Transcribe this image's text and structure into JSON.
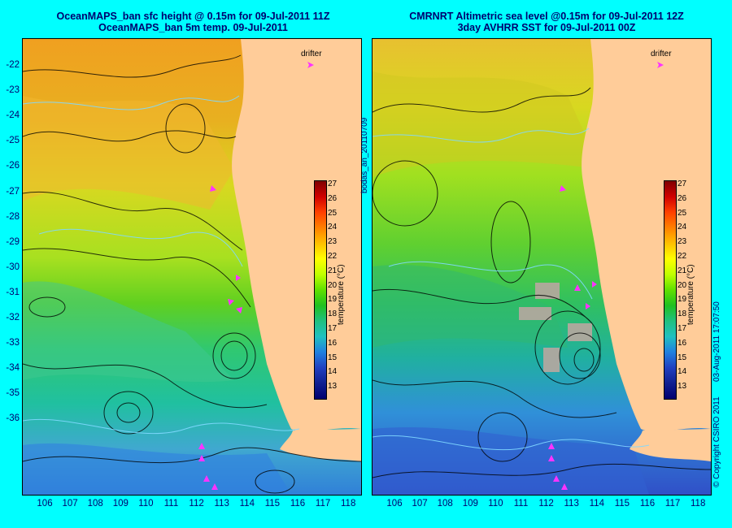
{
  "titles": {
    "left_line1": "OceanMAPS_ban sfc height  @ 0.15m for 09-Jul-2011 11Z",
    "left_line2": "OceanMAPS_ban 5m temp. 09-Jul-2011",
    "right_line1": "CMRNRT Altimetric sea level  @0.15m  for 09-Jul-2011 12Z",
    "right_line2": "3day AVHRR SST for 09-Jul-2011 00Z"
  },
  "axes": {
    "lat_ticks": [
      "-22",
      "-23",
      "-24",
      "-25",
      "-26",
      "-27",
      "-28",
      "-29",
      "-30",
      "-31",
      "-32",
      "-33",
      "-34",
      "-35",
      "-36"
    ],
    "lon_ticks": [
      "106",
      "107",
      "108",
      "109",
      "110",
      "111",
      "112",
      "113",
      "114",
      "115",
      "116",
      "117",
      "118"
    ]
  },
  "legend": {
    "drifter_label": "drifter",
    "colorbar_ticks": [
      "27",
      "26",
      "25",
      "24",
      "23",
      "22",
      "21",
      "20",
      "19",
      "18",
      "17",
      "16",
      "15",
      "14",
      "13"
    ],
    "colorbar_label": "temperature (°C)"
  },
  "side_labels": {
    "run_id": "bodas_an_20110709",
    "timestamp": "03-Aug-2011 17:07:50",
    "copyright": "© Copyright CSIRO 2011"
  },
  "colors": {
    "background": "#00ffff",
    "land": "#ffcc99",
    "drifter": "#ff33ff"
  }
}
